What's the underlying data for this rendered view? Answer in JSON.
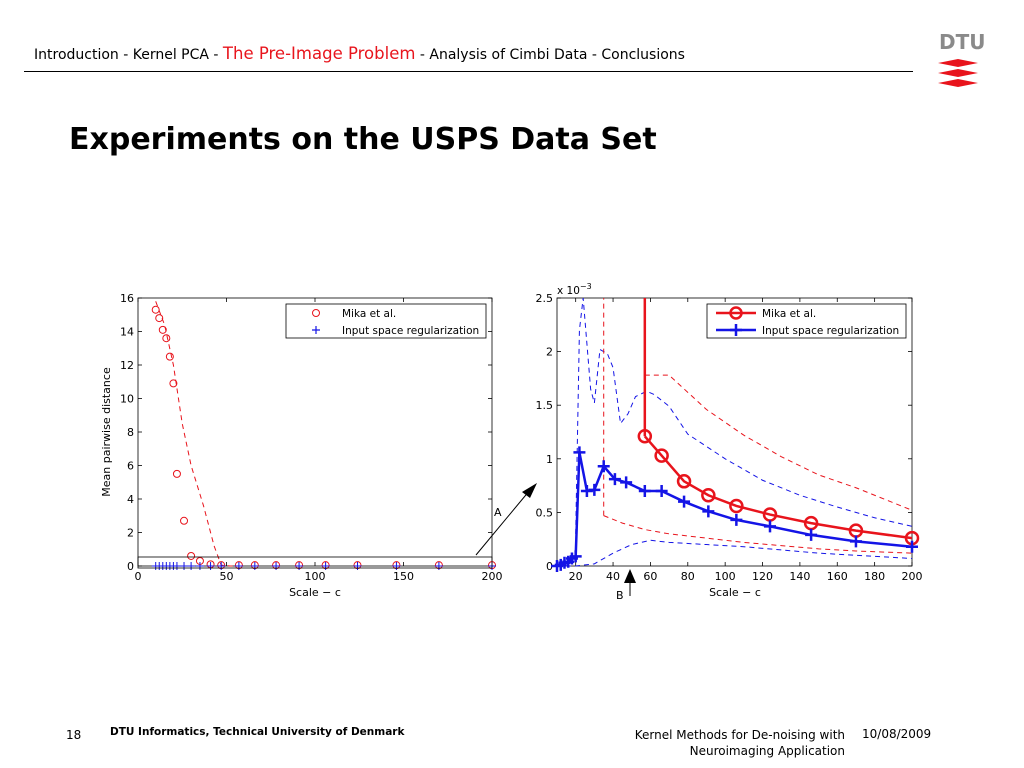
{
  "nav": {
    "items": [
      "Introduction",
      "Kernel PCA",
      "The Pre-Image Problem",
      "Analysis of Cimbi Data",
      "Conclusions"
    ],
    "separator": " - ",
    "active_index": 2
  },
  "logo": {
    "text": "DTU",
    "color": "#e8141c"
  },
  "title": "Experiments on the USPS Data Set",
  "footer": {
    "page": "18",
    "org": "DTU Informatics, Technical University of Denmark",
    "talk_line1": "Kernel Methods for De-noising with",
    "talk_line2": "Neuroimaging Application",
    "date": "10/08/2009"
  },
  "annotations": {
    "a": "A",
    "b": "B"
  },
  "chart_data": [
    {
      "type": "scatter",
      "xlabel": "Scale − c",
      "ylabel": "Mean pairwise distance",
      "xlim": [
        0,
        200
      ],
      "ylim": [
        0,
        16
      ],
      "xticks": [
        0,
        50,
        100,
        150,
        200
      ],
      "yticks": [
        0,
        2,
        4,
        6,
        8,
        10,
        12,
        14,
        16
      ],
      "legend_position": "top-right",
      "series": [
        {
          "name": "Mika et al.",
          "color": "#e8141c",
          "marker": "circle",
          "x": [
            10,
            12,
            14,
            16,
            18,
            20,
            22,
            26,
            30,
            35,
            41,
            47,
            57,
            66,
            78,
            91,
            106,
            124,
            146,
            170,
            200
          ],
          "y": [
            15.3,
            14.8,
            14.1,
            13.6,
            12.5,
            10.9,
            5.5,
            2.7,
            0.6,
            0.3,
            0.1,
            0.05,
            0.05,
            0.05,
            0.05,
            0.05,
            0.05,
            0.05,
            0.05,
            0.05,
            0.05
          ]
        },
        {
          "name": "Input space regularization",
          "color": "#1414e6",
          "marker": "plus",
          "x": [
            10,
            12,
            14,
            16,
            18,
            20,
            22,
            26,
            30,
            35,
            41,
            47,
            57,
            66,
            78,
            91,
            106,
            124,
            146,
            170,
            200
          ],
          "y": [
            0,
            0,
            0,
            0,
            0,
            0,
            0,
            0,
            0,
            0,
            0,
            0,
            0,
            0,
            0,
            0,
            0,
            0,
            0,
            0,
            0
          ]
        }
      ],
      "bands": [
        {
          "color": "#e8141c",
          "x": [
            10,
            15,
            20,
            25,
            30,
            37,
            43,
            47,
            52,
            60
          ],
          "y": [
            15.8,
            14.4,
            12.0,
            8.5,
            6.0,
            3.6,
            1.2,
            0.05,
            0,
            0
          ]
        }
      ]
    },
    {
      "type": "line",
      "xlabel": "Scale − c",
      "ylabel": "",
      "exponent_label": "x 10",
      "exponent_power": "−3",
      "xlim": [
        10,
        200
      ],
      "ylim": [
        0,
        2.5
      ],
      "xticks": [
        20,
        40,
        60,
        80,
        100,
        120,
        140,
        160,
        180,
        200
      ],
      "yticks": [
        0,
        0.5,
        1,
        1.5,
        2,
        2.5
      ],
      "ytick_labels": [
        "0",
        "0.5",
        "1",
        "1.5",
        "2",
        "2.5"
      ],
      "legend_position": "top-right",
      "series": [
        {
          "name": "Mika et al.",
          "color": "#e8141c",
          "marker": "circle",
          "x": [
            57,
            66,
            78,
            91,
            106,
            124,
            146,
            170,
            200
          ],
          "y": [
            1.21,
            1.03,
            0.79,
            0.66,
            0.56,
            0.48,
            0.4,
            0.33,
            0.26
          ]
        },
        {
          "name": "Input space regularization",
          "color": "#1414e6",
          "marker": "plus",
          "x": [
            10,
            12,
            14,
            16,
            18,
            20,
            22,
            26,
            30,
            35,
            41,
            47,
            57,
            66,
            78,
            91,
            106,
            124,
            146,
            170,
            200
          ],
          "y": [
            0.0,
            0.01,
            0.03,
            0.04,
            0.07,
            0.09,
            1.06,
            0.7,
            0.71,
            0.93,
            0.81,
            0.78,
            0.7,
            0.7,
            0.6,
            0.51,
            0.43,
            0.37,
            0.29,
            0.23,
            0.18
          ]
        }
      ],
      "bands": [
        {
          "color": "#e8141c",
          "x": [
            57,
            70,
            90,
            110,
            130,
            150,
            170,
            200
          ],
          "y": [
            1.78,
            1.78,
            1.46,
            1.22,
            1.02,
            0.85,
            0.73,
            0.52
          ]
        },
        {
          "color": "#e8141c",
          "x": [
            35,
            45,
            57,
            70,
            90,
            110,
            130,
            150,
            170,
            200
          ],
          "y": [
            0.47,
            0.4,
            0.34,
            0.3,
            0.26,
            0.22,
            0.19,
            0.16,
            0.14,
            0.12
          ]
        },
        {
          "color": "#1414e6",
          "x": [
            20,
            22,
            24,
            28,
            30,
            33,
            37,
            40,
            44,
            48,
            52,
            58,
            62,
            70,
            80,
            100,
            120,
            140,
            160,
            180,
            200
          ],
          "y": [
            0.3,
            2.2,
            2.55,
            1.65,
            1.52,
            2.02,
            1.98,
            1.85,
            1.33,
            1.42,
            1.58,
            1.63,
            1.6,
            1.49,
            1.23,
            1.0,
            0.8,
            0.66,
            0.55,
            0.45,
            0.37
          ]
        },
        {
          "color": "#1414e6",
          "x": [
            10,
            20,
            30,
            40,
            50,
            60,
            70,
            90,
            110,
            130,
            150,
            170,
            200
          ],
          "y": [
            0,
            0,
            0.02,
            0.12,
            0.2,
            0.24,
            0.22,
            0.2,
            0.18,
            0.15,
            0.12,
            0.1,
            0.07
          ]
        }
      ],
      "vertical_lines": [
        {
          "color": "#e8141c",
          "style": "solid",
          "x": 57,
          "y_from": 1.21,
          "y_to": 2.5
        },
        {
          "color": "#e8141c",
          "style": "dashed",
          "x": 35,
          "y_from": 0.47,
          "y_to": 2.5
        }
      ]
    }
  ]
}
